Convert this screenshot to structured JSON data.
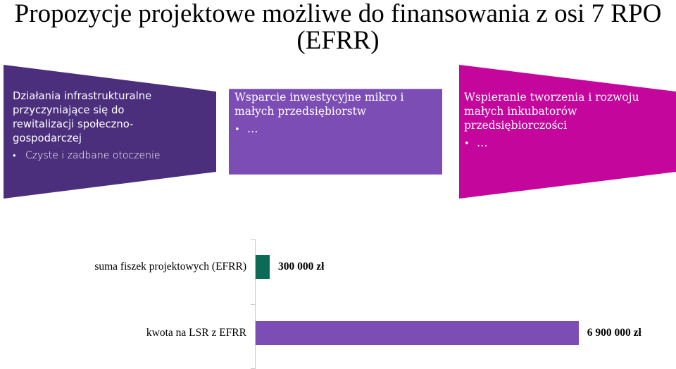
{
  "title": {
    "line1": "Propozycje projektowe możliwe do finansowania z osi 7 RPO",
    "line2": "(EFRR)"
  },
  "boxes": [
    {
      "heading_lines": [
        "Działania infrastrukturalne",
        "przyczyniające się do",
        "rewitalizacji społeczno-",
        "gospodarczej"
      ],
      "bullets": [
        "Czyste i zadbane otoczenie"
      ],
      "color": "#4b2f7c"
    },
    {
      "heading_lines": [
        "Wsparcie inwestycyjne mikro i",
        "małych przedsiębiorstw"
      ],
      "bullets": [
        "…"
      ],
      "color": "#7c4db4"
    },
    {
      "heading_lines": [
        "Wspieranie tworzenia i rozwoju",
        "małych inkubatorów",
        "przedsiębiorczości"
      ],
      "bullets": [
        "…"
      ],
      "color": "#c4069c"
    }
  ],
  "chart_data": {
    "type": "bar",
    "orientation": "horizontal",
    "categories": [
      "suma fiszek projektowych (EFRR)",
      "kwota na LSR z EFRR"
    ],
    "values": [
      300000,
      6900000
    ],
    "value_labels": [
      "300 000 zł",
      "6 900 000 zł"
    ],
    "colors": [
      "#0b6b57",
      "#7c4db4"
    ],
    "xlim": [
      0,
      7700000
    ],
    "grid": false,
    "legend": "none"
  }
}
